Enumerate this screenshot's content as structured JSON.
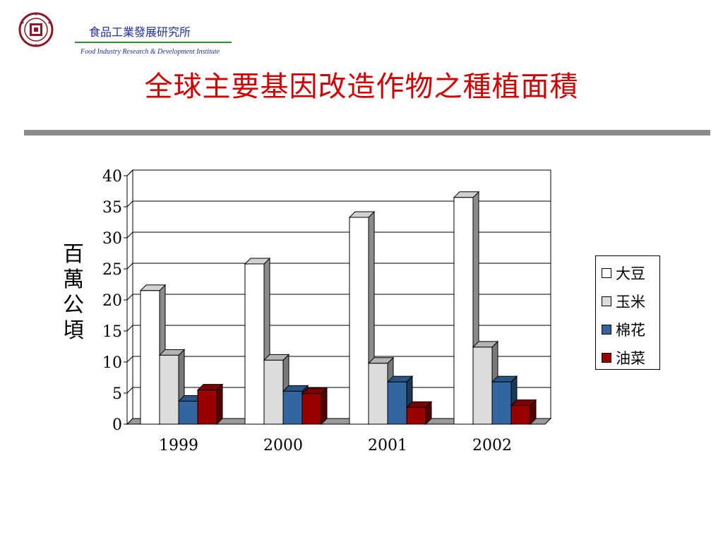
{
  "header": {
    "org_name_cn": "食品工業發展研究所",
    "org_name_en": "Food Industry Research & Development Institute"
  },
  "slide": {
    "title": "全球主要基因改造作物之種植面積"
  },
  "chart_data": {
    "type": "bar",
    "categories": [
      "1999",
      "2000",
      "2001",
      "2002"
    ],
    "series": [
      {
        "name": "大豆",
        "color": "#ffffff",
        "values": [
          21.5,
          25.8,
          33.3,
          36.5
        ]
      },
      {
        "name": "玉米",
        "color": "#dcdcdc",
        "values": [
          11.1,
          10.3,
          9.8,
          12.4
        ]
      },
      {
        "name": "棉花",
        "color": "#3366a0",
        "values": [
          3.7,
          5.3,
          6.8,
          6.8
        ]
      },
      {
        "name": "油菜",
        "color": "#990000",
        "values": [
          5.5,
          4.9,
          2.7,
          3.0
        ]
      }
    ],
    "ylabel": "百萬公頃",
    "yticks": [
      "0",
      "5",
      "10",
      "15",
      "20",
      "25",
      "30",
      "35",
      "40"
    ],
    "ylim": [
      0,
      40
    ],
    "grid": true,
    "legend": "right"
  }
}
